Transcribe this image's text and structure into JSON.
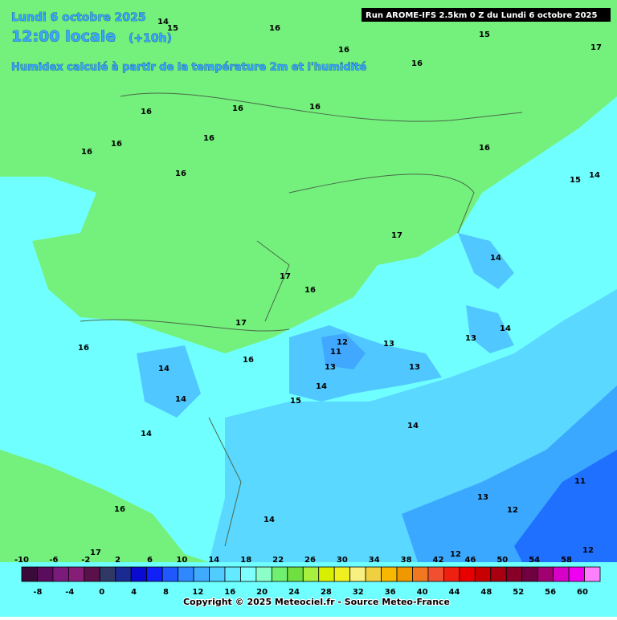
{
  "header": {
    "date": "Lundi 6 octobre 2025",
    "time": "12:00 locale",
    "offset": "(+10h)",
    "subtitle": "Humidex calculé à partir de la température 2m et l'humidité"
  },
  "run": "Run AROME-IFS 2.5km 0 Z du Lundi 6 octobre 2025",
  "contour_labels": [
    14,
    15,
    16,
    15,
    17,
    16,
    16,
    16,
    16,
    16,
    16,
    16,
    16,
    16,
    16,
    14,
    15,
    17,
    14,
    17,
    16,
    14,
    17,
    13,
    16,
    12,
    11,
    13,
    16,
    14,
    13,
    13,
    14,
    14,
    15,
    14,
    14,
    11,
    13,
    16,
    12,
    14,
    12,
    12,
    17
  ],
  "colorbar": {
    "top_labels": [
      -10,
      -6,
      -2,
      2,
      6,
      10,
      14,
      18,
      22,
      26,
      30,
      34,
      38,
      42,
      46,
      50,
      54,
      58
    ],
    "bottom_labels": [
      -8,
      -4,
      0,
      4,
      8,
      12,
      16,
      20,
      24,
      28,
      32,
      36,
      40,
      44,
      48,
      52,
      56,
      60
    ],
    "colors": [
      "#3a0a3a",
      "#5c0c5c",
      "#7a1a7a",
      "#861e78",
      "#5a1048",
      "#303866",
      "#1a2a90",
      "#0a0ad0",
      "#1020f8",
      "#2058ff",
      "#3088ff",
      "#40aaff",
      "#50ccff",
      "#64eaff",
      "#80ffff",
      "#8cffc8",
      "#70f070",
      "#70e040",
      "#a8f040",
      "#d8f000",
      "#f0f020",
      "#f8f080",
      "#f0d040",
      "#f8b800",
      "#f09800",
      "#f07820",
      "#f05030",
      "#f02010",
      "#e80000",
      "#c80000",
      "#a80010",
      "#880028",
      "#700040",
      "#a00070",
      "#d800c8"
    ],
    "extra_colors": [
      "#f000f0",
      "#ff80ff"
    ]
  },
  "copyright": "Copyright © 2025 Meteociel.fr - Source Meteo-France"
}
